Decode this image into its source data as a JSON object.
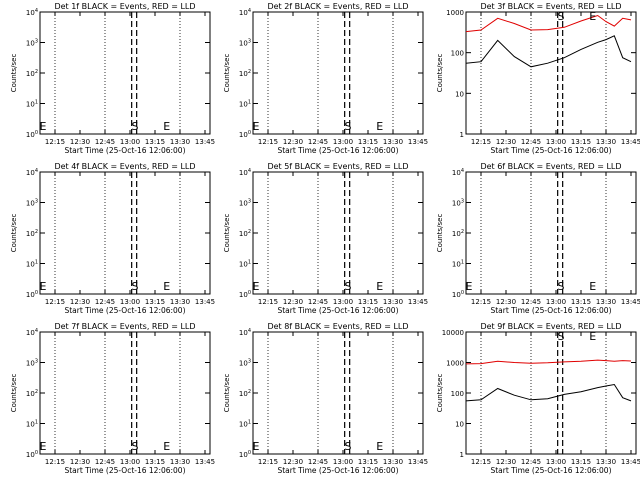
{
  "x_axis_label": "Start Time (25-Oct-16 12:06:00)",
  "y_axis_label": "Counts/sec",
  "x_tick_labels": [
    "12:15",
    "12:30",
    "12:45",
    "13:00",
    "13:15",
    "13:30",
    "13:45"
  ],
  "colors": {
    "events": "#000000",
    "lld": "#e00000",
    "axes": "#000000"
  },
  "chart_data": [
    {
      "type": "line",
      "title": "Det 1f BLACK = Events, RED = LLD",
      "xlabel": "Start Time (25-Oct-16 12:06:00)",
      "ylabel": "Counts/sec",
      "x_unit": "time (HH:MM)",
      "xlim": [
        "12:06",
        "13:48"
      ],
      "ylim": [
        1,
        10000
      ],
      "y_scale": "log",
      "y_tick_labels": [
        "10^0",
        "10^1",
        "10^2",
        "10^3",
        "10^4"
      ],
      "grid": "vertical dotted at 12:15, 12:45, 13:30",
      "markers": [
        {
          "label": "S",
          "time": "13:03"
        },
        {
          "label": "E",
          "time": "13:22"
        },
        {
          "label": "E",
          "time": "12:06"
        }
      ],
      "dashed_lines": [
        "13:01",
        "13:04"
      ],
      "series": []
    },
    {
      "type": "line",
      "title": "Det 2f BLACK = Events, RED = LLD",
      "xlabel": "Start Time (25-Oct-16 12:06:00)",
      "ylabel": "Counts/sec",
      "x_unit": "time (HH:MM)",
      "xlim": [
        "12:06",
        "13:48"
      ],
      "ylim": [
        1,
        10000
      ],
      "y_scale": "log",
      "y_tick_labels": [
        "10^0",
        "10^1",
        "10^2",
        "10^3",
        "10^4"
      ],
      "grid": "vertical dotted at 12:15, 12:45, 13:30",
      "markers": [
        {
          "label": "S",
          "time": "13:03"
        },
        {
          "label": "E",
          "time": "13:22"
        },
        {
          "label": "E",
          "time": "12:06"
        }
      ],
      "dashed_lines": [
        "13:01",
        "13:04"
      ],
      "series": []
    },
    {
      "type": "line",
      "title": "Det 3f BLACK = Events, RED = LLD",
      "xlabel": "Start Time (25-Oct-16 12:06:00)",
      "ylabel": "Counts/sec",
      "x_unit": "time (HH:MM)",
      "xlim": [
        "12:06",
        "13:48"
      ],
      "ylim": [
        1,
        1000
      ],
      "y_scale": "log",
      "y_tick_labels": [
        "1",
        "10",
        "100",
        "1000"
      ],
      "grid": "vertical dotted at 12:15, 12:45, 13:30",
      "markers": [
        {
          "label": "S",
          "time": "13:03"
        },
        {
          "label": "E",
          "time": "13:22"
        }
      ],
      "dashed_lines": [
        "13:01",
        "13:04"
      ],
      "series": [
        {
          "name": "LLD",
          "color": "#e00000",
          "x": [
            "12:06",
            "12:15",
            "12:25",
            "12:35",
            "12:45",
            "12:55",
            "13:05",
            "13:15",
            "13:25",
            "13:30",
            "13:35",
            "13:40",
            "13:45"
          ],
          "values": [
            330,
            360,
            700,
            520,
            360,
            370,
            420,
            600,
            820,
            580,
            450,
            700,
            640
          ]
        },
        {
          "name": "Events",
          "color": "#000000",
          "x": [
            "12:06",
            "12:15",
            "12:25",
            "12:35",
            "12:45",
            "12:55",
            "13:05",
            "13:15",
            "13:25",
            "13:30",
            "13:35",
            "13:40",
            "13:45"
          ],
          "values": [
            55,
            60,
            200,
            80,
            45,
            55,
            75,
            120,
            180,
            210,
            260,
            75,
            60
          ]
        }
      ]
    },
    {
      "type": "line",
      "title": "Det 4f BLACK = Events, RED = LLD",
      "xlabel": "Start Time (25-Oct-16 12:06:00)",
      "ylabel": "Counts/sec",
      "x_unit": "time (HH:MM)",
      "xlim": [
        "12:06",
        "13:48"
      ],
      "ylim": [
        1,
        10000
      ],
      "y_scale": "log",
      "y_tick_labels": [
        "10^0",
        "10^1",
        "10^2",
        "10^3",
        "10^4"
      ],
      "grid": "vertical dotted at 12:15, 12:45, 13:30",
      "markers": [
        {
          "label": "S",
          "time": "13:03"
        },
        {
          "label": "E",
          "time": "13:22"
        },
        {
          "label": "E",
          "time": "12:06"
        }
      ],
      "dashed_lines": [
        "13:01",
        "13:04"
      ],
      "series": []
    },
    {
      "type": "line",
      "title": "Det 5f BLACK = Events, RED = LLD",
      "xlabel": "Start Time (25-Oct-16 12:06:00)",
      "ylabel": "Counts/sec",
      "x_unit": "time (HH:MM)",
      "xlim": [
        "12:06",
        "13:48"
      ],
      "ylim": [
        1,
        10000
      ],
      "y_scale": "log",
      "y_tick_labels": [
        "10^0",
        "10^1",
        "10^2",
        "10^3",
        "10^4"
      ],
      "grid": "vertical dotted at 12:15, 12:45, 13:30",
      "markers": [
        {
          "label": "S",
          "time": "13:03"
        },
        {
          "label": "E",
          "time": "13:22"
        },
        {
          "label": "E",
          "time": "12:06"
        }
      ],
      "dashed_lines": [
        "13:01",
        "13:04"
      ],
      "series": []
    },
    {
      "type": "line",
      "title": "Det 6f BLACK = Events, RED = LLD",
      "xlabel": "Start Time (25-Oct-16 12:06:00)",
      "ylabel": "Counts/sec",
      "x_unit": "time (HH:MM)",
      "xlim": [
        "12:06",
        "13:48"
      ],
      "ylim": [
        1,
        10000
      ],
      "y_scale": "log",
      "y_tick_labels": [
        "10^0",
        "10^1",
        "10^2",
        "10^3",
        "10^4"
      ],
      "grid": "vertical dotted at 12:15, 12:45, 13:30",
      "markers": [
        {
          "label": "S",
          "time": "13:03"
        },
        {
          "label": "E",
          "time": "13:22"
        },
        {
          "label": "E",
          "time": "12:06"
        }
      ],
      "dashed_lines": [
        "13:01",
        "13:04"
      ],
      "series": []
    },
    {
      "type": "line",
      "title": "Det 7f BLACK = Events, RED = LLD",
      "xlabel": "Start Time (25-Oct-16 12:06:00)",
      "ylabel": "Counts/sec",
      "x_unit": "time (HH:MM)",
      "xlim": [
        "12:06",
        "13:48"
      ],
      "ylim": [
        1,
        10000
      ],
      "y_scale": "log",
      "y_tick_labels": [
        "10^0",
        "10^1",
        "10^2",
        "10^3",
        "10^4"
      ],
      "grid": "vertical dotted at 12:15, 12:45, 13:30",
      "markers": [
        {
          "label": "S",
          "time": "13:03"
        },
        {
          "label": "E",
          "time": "13:22"
        },
        {
          "label": "E",
          "time": "12:06"
        }
      ],
      "dashed_lines": [
        "13:01",
        "13:04"
      ],
      "series": []
    },
    {
      "type": "line",
      "title": "Det 8f BLACK = Events, RED = LLD",
      "xlabel": "Start Time (25-Oct-16 12:06:00)",
      "ylabel": "Counts/sec",
      "x_unit": "time (HH:MM)",
      "xlim": [
        "12:06",
        "13:48"
      ],
      "ylim": [
        1,
        10000
      ],
      "y_scale": "log",
      "y_tick_labels": [
        "10^0",
        "10^1",
        "10^2",
        "10^3",
        "10^4"
      ],
      "grid": "vertical dotted at 12:15, 12:45, 13:30",
      "markers": [
        {
          "label": "S",
          "time": "13:03"
        },
        {
          "label": "E",
          "time": "13:22"
        },
        {
          "label": "E",
          "time": "12:06"
        }
      ],
      "dashed_lines": [
        "13:01",
        "13:04"
      ],
      "series": []
    },
    {
      "type": "line",
      "title": "Det 9f BLACK = Events, RED = LLD",
      "xlabel": "Start Time (25-Oct-16 12:06:00)",
      "ylabel": "Counts/sec",
      "x_unit": "time (HH:MM)",
      "xlim": [
        "12:06",
        "13:48"
      ],
      "ylim": [
        1,
        10000
      ],
      "y_scale": "log",
      "y_tick_labels": [
        "1",
        "10",
        "100",
        "1000",
        "10000"
      ],
      "grid": "vertical dotted at 12:15, 12:45, 13:30",
      "markers": [
        {
          "label": "S",
          "time": "13:03"
        },
        {
          "label": "E",
          "time": "13:22"
        }
      ],
      "dashed_lines": [
        "13:01",
        "13:04"
      ],
      "series": [
        {
          "name": "LLD",
          "color": "#e00000",
          "x": [
            "12:06",
            "12:15",
            "12:25",
            "12:35",
            "12:45",
            "12:55",
            "13:05",
            "13:15",
            "13:25",
            "13:30",
            "13:35",
            "13:40",
            "13:45"
          ],
          "values": [
            900,
            920,
            1100,
            1000,
            950,
            980,
            1050,
            1100,
            1200,
            1150,
            1100,
            1150,
            1120
          ]
        },
        {
          "name": "Events",
          "color": "#000000",
          "x": [
            "12:06",
            "12:15",
            "12:25",
            "12:35",
            "12:45",
            "12:55",
            "13:05",
            "13:15",
            "13:25",
            "13:30",
            "13:35",
            "13:40",
            "13:45"
          ],
          "values": [
            55,
            60,
            140,
            85,
            60,
            65,
            90,
            110,
            150,
            170,
            190,
            70,
            55
          ]
        }
      ]
    }
  ]
}
